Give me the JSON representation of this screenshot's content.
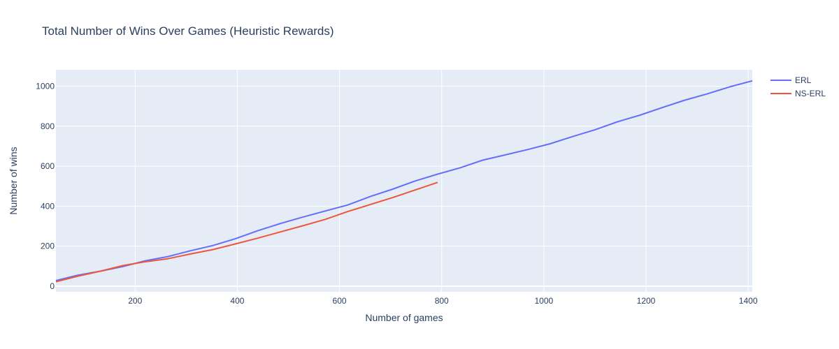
{
  "chart_data": {
    "type": "line",
    "title": "Total Number of Wins Over Games (Heuristic Rewards)",
    "xlabel": "Number of games",
    "ylabel": "Number of wins",
    "xlim": [
      45,
      1408
    ],
    "ylim": [
      -28,
      1082
    ],
    "xticks": [
      200,
      400,
      600,
      800,
      1000,
      1200,
      1400
    ],
    "yticks": [
      0,
      200,
      400,
      600,
      800,
      1000
    ],
    "grid": true,
    "legend_position": "top-right",
    "colors": {
      "plot_bg": "#e5ecf6",
      "grid": "#ffffff",
      "text": "#2a3f5f"
    },
    "series": [
      {
        "name": "ERL",
        "color": "#636efa",
        "x": [
          45,
          88,
          132,
          176,
          220,
          264,
          308,
          352,
          396,
          440,
          484,
          528,
          572,
          616,
          660,
          704,
          748,
          792,
          836,
          880,
          924,
          968,
          1012,
          1056,
          1100,
          1144,
          1188,
          1232,
          1276,
          1320,
          1364,
          1408
        ],
        "y": [
          28,
          55,
          75,
          98,
          127,
          148,
          177,
          203,
          237,
          277,
          313,
          345,
          376,
          406,
          448,
          485,
          526,
          560,
          592,
          630,
          656,
          683,
          712,
          748,
          782,
          822,
          855,
          893,
          930,
          962,
          997,
          1027
        ]
      },
      {
        "name": "NS-ERL",
        "color": "#ef553b",
        "x": [
          45,
          88,
          132,
          176,
          220,
          264,
          308,
          352,
          396,
          440,
          484,
          528,
          572,
          616,
          660,
          704,
          748,
          792
        ],
        "y": [
          22,
          50,
          75,
          103,
          122,
          137,
          161,
          183,
          211,
          240,
          271,
          302,
          334,
          373,
          408,
          443,
          481,
          519
        ]
      }
    ]
  }
}
